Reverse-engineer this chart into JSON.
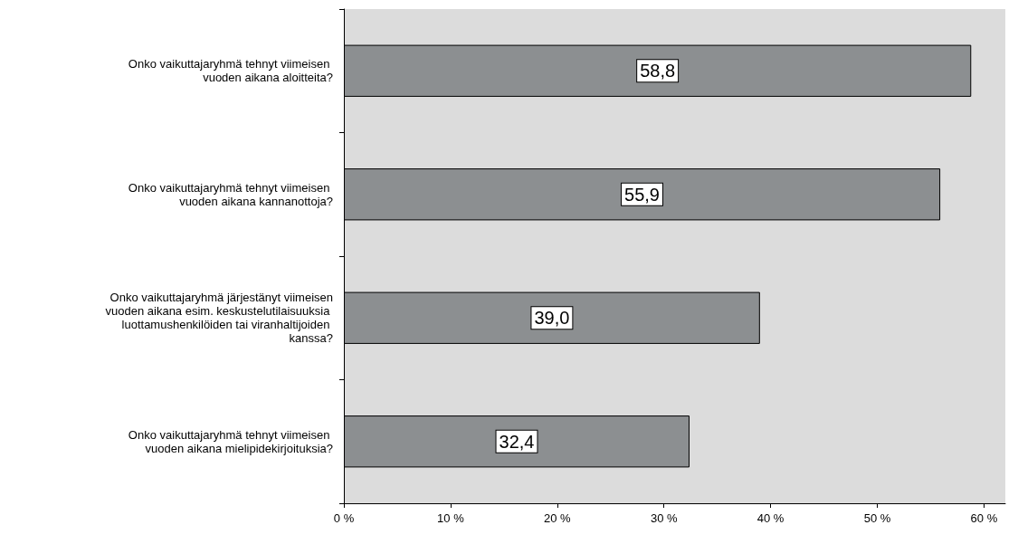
{
  "chart_data": {
    "type": "bar",
    "orientation": "horizontal",
    "categories": [
      "Onko vaikuttajaryhmä tehnyt viimeisen vuoden aikana aloitteita?",
      "Onko vaikuttajaryhmä tehnyt viimeisen vuoden aikana kannanottoja?",
      "Onko vaikuttajaryhmä järjestänyt viimeisen vuoden aikana esim. keskustelutilaisuuksia luottamushenkilöiden tai viranhaltijoiden kanssa?",
      "Onko vaikuttajaryhmä tehnyt viimeisen vuoden aikana mielipidekirjoituksia?"
    ],
    "values": [
      58.8,
      55.9,
      39.0,
      32.4
    ],
    "value_labels": [
      "58,8",
      "55,9",
      "39,0",
      "32,4"
    ],
    "color": "#8c8f91",
    "xlim": [
      0,
      62
    ],
    "xticks": [
      {
        "value": 0,
        "label": "0 %"
      },
      {
        "value": 10,
        "label": "10 %"
      },
      {
        "value": 20,
        "label": "20 %"
      },
      {
        "value": 30,
        "label": "30 %"
      },
      {
        "value": 40,
        "label": "40 %"
      },
      {
        "value": 50,
        "label": "50 %"
      },
      {
        "value": 60,
        "label": "60 %"
      }
    ],
    "grid": false
  }
}
